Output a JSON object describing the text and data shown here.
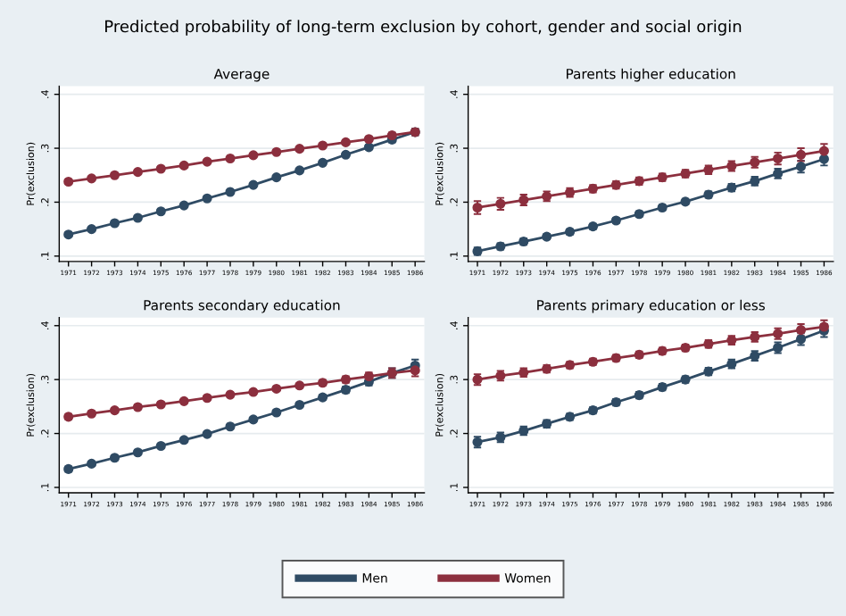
{
  "chart_data": [
    {
      "type": "line",
      "title": "Average",
      "ylabel": "Pr(exclusion)",
      "annotations": [
        "Predicted probability of long-term exclusion by cohort, gender and social origin"
      ],
      "legend": "bottom",
      "grid": "y",
      "marker": "circle",
      "line_style": "solid",
      "x": [
        1971,
        1972,
        1973,
        1974,
        1975,
        1976,
        1977,
        1978,
        1979,
        1980,
        1981,
        1982,
        1983,
        1984,
        1985,
        1986
      ],
      "xlim": [
        1970.6,
        1986.4
      ],
      "xticks": [
        1971,
        1972,
        1973,
        1974,
        1975,
        1976,
        1977,
        1978,
        1979,
        1980,
        1981,
        1982,
        1983,
        1984,
        1985,
        1986
      ],
      "ylim": [
        0.09,
        0.415
      ],
      "yticks": [
        {
          "value": 0.1,
          "label": ".1"
        },
        {
          "value": 0.2,
          "label": ".2"
        },
        {
          "value": 0.3,
          "label": ".3"
        },
        {
          "value": 0.4,
          "label": ".4"
        }
      ],
      "series": [
        {
          "name": "Men",
          "color": "#2f4b64",
          "values": [
            0.14,
            0.15,
            0.161,
            0.171,
            0.183,
            0.194,
            0.207,
            0.219,
            0.232,
            0.246,
            0.259,
            0.273,
            0.288,
            0.302,
            0.316,
            0.33
          ],
          "errors": [
            0.004,
            0.003,
            0.003,
            0.003,
            0.003,
            0.003,
            0.003,
            0.003,
            0.003,
            0.003,
            0.003,
            0.003,
            0.003,
            0.004,
            0.005,
            0.006
          ]
        },
        {
          "name": "Women",
          "color": "#8c2f3e",
          "values": [
            0.238,
            0.244,
            0.25,
            0.256,
            0.262,
            0.268,
            0.275,
            0.281,
            0.287,
            0.293,
            0.299,
            0.305,
            0.311,
            0.317,
            0.324,
            0.33
          ],
          "errors": [
            0.004,
            0.003,
            0.003,
            0.003,
            0.003,
            0.003,
            0.003,
            0.003,
            0.003,
            0.003,
            0.003,
            0.003,
            0.003,
            0.004,
            0.005,
            0.006
          ]
        }
      ]
    },
    {
      "type": "line",
      "title": "Parents higher education",
      "ylabel": "Pr(exclusion)",
      "grid": "y",
      "marker": "circle",
      "line_style": "solid",
      "x": [
        1971,
        1972,
        1973,
        1974,
        1975,
        1976,
        1977,
        1978,
        1979,
        1980,
        1981,
        1982,
        1983,
        1984,
        1985,
        1986
      ],
      "xlim": [
        1970.6,
        1986.4
      ],
      "xticks": [
        1971,
        1972,
        1973,
        1974,
        1975,
        1976,
        1977,
        1978,
        1979,
        1980,
        1981,
        1982,
        1983,
        1984,
        1985,
        1986
      ],
      "ylim": [
        0.09,
        0.415
      ],
      "yticks": [
        {
          "value": 0.1,
          "label": ".1"
        },
        {
          "value": 0.2,
          "label": ".2"
        },
        {
          "value": 0.3,
          "label": ".3"
        },
        {
          "value": 0.4,
          "label": ".4"
        }
      ],
      "series": [
        {
          "color": "#2f4b64",
          "values": [
            0.109,
            0.118,
            0.127,
            0.136,
            0.145,
            0.155,
            0.166,
            0.178,
            0.19,
            0.201,
            0.214,
            0.227,
            0.239,
            0.253,
            0.266,
            0.28
          ],
          "errors": [
            0.007,
            0.006,
            0.006,
            0.005,
            0.005,
            0.005,
            0.005,
            0.005,
            0.005,
            0.005,
            0.006,
            0.007,
            0.008,
            0.009,
            0.011,
            0.012
          ]
        },
        {
          "color": "#8c2f3e",
          "values": [
            0.19,
            0.197,
            0.204,
            0.211,
            0.218,
            0.225,
            0.232,
            0.239,
            0.246,
            0.253,
            0.26,
            0.267,
            0.274,
            0.281,
            0.288,
            0.295
          ],
          "errors": [
            0.012,
            0.011,
            0.01,
            0.009,
            0.008,
            0.007,
            0.007,
            0.007,
            0.007,
            0.007,
            0.008,
            0.009,
            0.01,
            0.011,
            0.012,
            0.013
          ]
        }
      ]
    },
    {
      "type": "line",
      "title": "Parents secondary education",
      "ylabel": "Pr(exclusion)",
      "grid": "y",
      "marker": "circle",
      "line_style": "solid",
      "x": [
        1971,
        1972,
        1973,
        1974,
        1975,
        1976,
        1977,
        1978,
        1979,
        1980,
        1981,
        1982,
        1983,
        1984,
        1985,
        1986
      ],
      "xlim": [
        1970.6,
        1986.4
      ],
      "xticks": [
        1971,
        1972,
        1973,
        1974,
        1975,
        1976,
        1977,
        1978,
        1979,
        1980,
        1981,
        1982,
        1983,
        1984,
        1985,
        1986
      ],
      "ylim": [
        0.09,
        0.415
      ],
      "yticks": [
        {
          "value": 0.1,
          "label": ".1"
        },
        {
          "value": 0.2,
          "label": ".2"
        },
        {
          "value": 0.3,
          "label": ".3"
        },
        {
          "value": 0.4,
          "label": ".4"
        }
      ],
      "series": [
        {
          "color": "#2f4b64",
          "values": [
            0.134,
            0.144,
            0.155,
            0.165,
            0.177,
            0.188,
            0.199,
            0.213,
            0.226,
            0.239,
            0.253,
            0.267,
            0.281,
            0.296,
            0.312,
            0.326
          ],
          "errors": [
            0.005,
            0.004,
            0.004,
            0.004,
            0.004,
            0.004,
            0.004,
            0.004,
            0.004,
            0.004,
            0.004,
            0.005,
            0.006,
            0.007,
            0.009,
            0.011
          ]
        },
        {
          "color": "#8c2f3e",
          "values": [
            0.231,
            0.237,
            0.243,
            0.249,
            0.254,
            0.26,
            0.266,
            0.272,
            0.277,
            0.283,
            0.289,
            0.294,
            0.3,
            0.306,
            0.312,
            0.317
          ],
          "errors": [
            0.005,
            0.004,
            0.004,
            0.004,
            0.004,
            0.004,
            0.004,
            0.004,
            0.004,
            0.004,
            0.004,
            0.005,
            0.006,
            0.007,
            0.009,
            0.011
          ]
        }
      ]
    },
    {
      "type": "line",
      "title": "Parents primary education or less",
      "ylabel": "Pr(exclusion)",
      "grid": "y",
      "marker": "circle",
      "line_style": "solid",
      "x": [
        1971,
        1972,
        1973,
        1974,
        1975,
        1976,
        1977,
        1978,
        1979,
        1980,
        1981,
        1982,
        1983,
        1984,
        1985,
        1986
      ],
      "xlim": [
        1970.6,
        1986.4
      ],
      "xticks": [
        1971,
        1972,
        1973,
        1974,
        1975,
        1976,
        1977,
        1978,
        1979,
        1980,
        1981,
        1982,
        1983,
        1984,
        1985,
        1986
      ],
      "ylim": [
        0.09,
        0.415
      ],
      "yticks": [
        {
          "value": 0.1,
          "label": ".1"
        },
        {
          "value": 0.2,
          "label": ".2"
        },
        {
          "value": 0.3,
          "label": ".3"
        },
        {
          "value": 0.4,
          "label": ".4"
        }
      ],
      "series": [
        {
          "color": "#2f4b64",
          "values": [
            0.184,
            0.193,
            0.205,
            0.218,
            0.231,
            0.243,
            0.258,
            0.271,
            0.286,
            0.3,
            0.315,
            0.329,
            0.344,
            0.359,
            0.375,
            0.391
          ],
          "errors": [
            0.01,
            0.009,
            0.008,
            0.007,
            0.006,
            0.006,
            0.006,
            0.006,
            0.006,
            0.006,
            0.007,
            0.008,
            0.009,
            0.01,
            0.011,
            0.012
          ]
        },
        {
          "color": "#8c2f3e",
          "values": [
            0.3,
            0.307,
            0.313,
            0.32,
            0.327,
            0.333,
            0.34,
            0.346,
            0.353,
            0.359,
            0.366,
            0.373,
            0.379,
            0.385,
            0.392,
            0.398
          ],
          "errors": [
            0.01,
            0.009,
            0.008,
            0.007,
            0.006,
            0.006,
            0.006,
            0.006,
            0.006,
            0.006,
            0.007,
            0.008,
            0.009,
            0.01,
            0.011,
            0.012
          ]
        }
      ]
    }
  ]
}
